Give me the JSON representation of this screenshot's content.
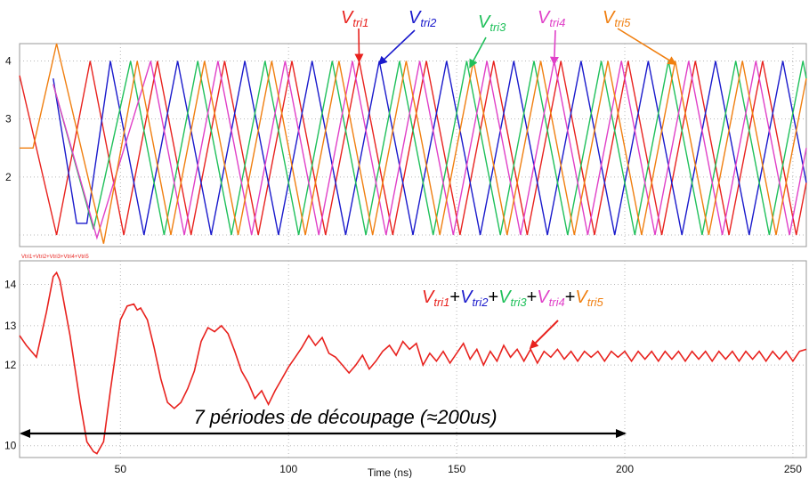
{
  "chart_data": [
    {
      "type": "line",
      "panel": "top",
      "xlim": [
        20,
        254
      ],
      "ylim": [
        0.8,
        4.3
      ],
      "y_ticks": [
        2,
        3,
        4
      ],
      "grid": "dotted",
      "series_style": "triangle carrier, 5 phase-shifted copies, amplitude 1 to 4",
      "series": [
        {
          "name": "Vtri1",
          "name_main": "V",
          "name_sub": "tri1",
          "color": "#e8221e",
          "start_x": 20,
          "start_y": 3.75,
          "turns": [
            [
              31,
              1
            ],
            [
              41,
              4
            ],
            [
              51,
              1
            ],
            [
              61,
              4
            ],
            [
              71,
              1
            ],
            [
              81,
              4
            ],
            [
              91,
              1
            ],
            [
              101,
              4
            ],
            [
              111,
              1
            ],
            [
              121,
              4
            ],
            [
              131,
              1
            ],
            [
              141,
              4
            ],
            [
              151,
              1
            ],
            [
              161,
              4
            ],
            [
              171,
              1
            ],
            [
              181,
              4
            ],
            [
              191,
              1
            ],
            [
              201,
              4
            ],
            [
              211,
              1
            ],
            [
              221,
              4
            ],
            [
              231,
              1
            ],
            [
              241,
              4
            ],
            [
              251,
              1
            ]
          ],
          "end_x": 254
        },
        {
          "name": "Vtri2",
          "name_main": "V",
          "name_sub": "tri2",
          "color": "#1a1acc",
          "start_x": 30,
          "start_y": 3.7,
          "turns": [
            [
              37,
              1.2
            ],
            [
              40,
              1.2
            ],
            [
              47,
              4
            ],
            [
              57,
              1
            ],
            [
              67,
              4
            ],
            [
              77,
              1
            ],
            [
              87,
              4
            ],
            [
              97,
              1
            ],
            [
              107,
              4
            ],
            [
              117,
              1
            ],
            [
              127,
              4
            ],
            [
              137,
              1
            ],
            [
              147,
              4
            ],
            [
              157,
              1
            ],
            [
              167,
              4
            ],
            [
              177,
              1
            ],
            [
              187,
              4
            ],
            [
              197,
              1
            ],
            [
              207,
              4
            ],
            [
              217,
              1
            ],
            [
              227,
              4
            ],
            [
              237,
              1
            ],
            [
              247,
              4
            ]
          ],
          "end_x": 254
        },
        {
          "name": "Vtri3",
          "name_main": "V",
          "name_sub": "tri3",
          "color": "#1fc05a",
          "start_x": 30,
          "start_y": 3.6,
          "turns": [
            [
              42,
              1.1
            ],
            [
              53,
              4
            ],
            [
              63,
              1
            ],
            [
              73,
              4
            ],
            [
              83,
              1
            ],
            [
              93,
              4
            ],
            [
              103,
              1
            ],
            [
              113,
              4
            ],
            [
              123,
              1
            ],
            [
              133,
              4
            ],
            [
              143,
              1
            ],
            [
              153,
              4
            ],
            [
              163,
              1
            ],
            [
              173,
              4
            ],
            [
              183,
              1
            ],
            [
              193,
              4
            ],
            [
              203,
              1
            ],
            [
              213,
              4
            ],
            [
              223,
              1
            ],
            [
              233,
              4
            ],
            [
              243,
              1
            ],
            [
              253,
              4
            ]
          ],
          "end_x": 254
        },
        {
          "name": "Vtri4",
          "name_main": "V",
          "name_sub": "tri4",
          "color": "#e040c8",
          "start_x": 30,
          "start_y": 3.6,
          "turns": [
            [
              43,
              0.95
            ],
            [
              59,
              4
            ],
            [
              69,
              1
            ],
            [
              79,
              4
            ],
            [
              89,
              1
            ],
            [
              99,
              4
            ],
            [
              109,
              1
            ],
            [
              119,
              4
            ],
            [
              129,
              1
            ],
            [
              139,
              4
            ],
            [
              149,
              1
            ],
            [
              159,
              4
            ],
            [
              169,
              1
            ],
            [
              179,
              4
            ],
            [
              189,
              1
            ],
            [
              199,
              4
            ],
            [
              209,
              1
            ],
            [
              219,
              4
            ],
            [
              229,
              1
            ],
            [
              239,
              4
            ],
            [
              249,
              1
            ]
          ],
          "end_x": 254
        },
        {
          "name": "Vtri5",
          "name_main": "V",
          "name_sub": "tri5",
          "color": "#f07f10",
          "start_x": 20,
          "start_y": 2.5,
          "turns": [
            [
              24,
              2.5
            ],
            [
              31,
              4.3
            ],
            [
              45,
              0.85
            ],
            [
              55,
              4
            ],
            [
              65,
              1
            ],
            [
              75,
              4
            ],
            [
              85,
              1
            ],
            [
              95,
              4
            ],
            [
              105,
              1
            ],
            [
              115,
              4
            ],
            [
              125,
              1
            ],
            [
              135,
              4
            ],
            [
              145,
              1
            ],
            [
              155,
              4
            ],
            [
              165,
              1
            ],
            [
              175,
              4
            ],
            [
              185,
              1
            ],
            [
              195,
              4
            ],
            [
              205,
              1
            ],
            [
              215,
              4
            ],
            [
              225,
              1
            ],
            [
              235,
              4
            ],
            [
              245,
              1
            ]
          ],
          "end_x": 254
        }
      ],
      "annotations": [
        {
          "series": "Vtri1",
          "arrow_to": [
            121,
            4.0
          ]
        },
        {
          "series": "Vtri2",
          "arrow_to": [
            127,
            3.95
          ]
        },
        {
          "series": "Vtri3",
          "arrow_to": [
            154,
            3.9
          ]
        },
        {
          "series": "Vtri4",
          "arrow_to": [
            179,
            3.95
          ]
        },
        {
          "series": "Vtri5",
          "arrow_to": [
            215,
            3.95
          ]
        }
      ]
    },
    {
      "type": "line",
      "panel": "bottom",
      "xlim": [
        20,
        254
      ],
      "ylim": [
        9.6,
        14.6
      ],
      "y_ticks": [
        10,
        12,
        13,
        14
      ],
      "y_tick_positions": [
        9.9,
        11.95,
        12.95,
        14
      ],
      "x_ticks": [
        50,
        100,
        150,
        200,
        250
      ],
      "xlabel": "Time (ns)",
      "legend_text": "Vtri1+Vtri2+Vtri3+Vtri4+Vtri5",
      "grid": "dotted",
      "series": [
        {
          "name": "Vtri1+Vtri2+Vtri3+Vtri4+Vtri5",
          "color": "#e8221e",
          "x": [
            20,
            22,
            25,
            28,
            30,
            31,
            32,
            35,
            38,
            40,
            42,
            43,
            45,
            47,
            50,
            52,
            54,
            55,
            56,
            58,
            60,
            62,
            64,
            66,
            68,
            70,
            72,
            74,
            76,
            78,
            80,
            82,
            84,
            86,
            88,
            90,
            92,
            94,
            96,
            98,
            100,
            102,
            104,
            106,
            108,
            110,
            112,
            114,
            116,
            118,
            120,
            122,
            124,
            126,
            128,
            130,
            132,
            134,
            136,
            138,
            140,
            142,
            144,
            146,
            148,
            150,
            152,
            154,
            156,
            158,
            160,
            162,
            164,
            166,
            168,
            170,
            172,
            174,
            176,
            178,
            180,
            182,
            184,
            186,
            188,
            190,
            192,
            194,
            196,
            198,
            200,
            202,
            204,
            206,
            208,
            210,
            212,
            214,
            216,
            218,
            220,
            222,
            224,
            226,
            228,
            230,
            232,
            234,
            236,
            238,
            240,
            242,
            244,
            246,
            248,
            250,
            252,
            254
          ],
          "y": [
            12.7,
            12.45,
            12.15,
            13.3,
            14.2,
            14.3,
            14.1,
            12.7,
            11.0,
            10.0,
            9.75,
            9.7,
            10.0,
            11.3,
            13.1,
            13.45,
            13.5,
            13.35,
            13.4,
            13.1,
            12.4,
            11.6,
            11.0,
            10.85,
            11.0,
            11.35,
            11.8,
            12.55,
            12.9,
            12.8,
            12.95,
            12.75,
            12.3,
            11.8,
            11.5,
            11.1,
            11.3,
            10.95,
            11.3,
            11.6,
            11.9,
            12.15,
            12.4,
            12.7,
            12.45,
            12.65,
            12.25,
            12.15,
            11.95,
            11.75,
            11.95,
            12.2,
            11.85,
            12.05,
            12.3,
            12.45,
            12.2,
            12.55,
            12.35,
            12.5,
            11.95,
            12.25,
            12.05,
            12.3,
            12.0,
            12.25,
            12.5,
            12.1,
            12.35,
            11.95,
            12.3,
            12.05,
            12.45,
            12.15,
            12.35,
            12.05,
            12.35,
            12.0,
            12.3,
            12.15,
            12.35,
            12.1,
            12.3,
            12.05,
            12.3,
            12.15,
            12.3,
            12.05,
            12.3,
            12.15,
            12.3,
            12.05,
            12.3,
            12.1,
            12.3,
            12.05,
            12.3,
            12.1,
            12.3,
            12.05,
            12.3,
            12.1,
            12.3,
            12.05,
            12.3,
            12.1,
            12.3,
            12.05,
            12.3,
            12.1,
            12.3,
            12.05,
            12.3,
            12.1,
            12.3,
            12.05,
            12.3,
            12.35
          ]
        }
      ],
      "annotations": [
        {
          "type": "arrow",
          "target": [
            172,
            12.3
          ]
        },
        {
          "type": "double-arrow",
          "x_range": [
            20,
            200
          ],
          "y": 9.9,
          "text": "7 périodes de découpage (≈200us)"
        }
      ]
    }
  ]
}
